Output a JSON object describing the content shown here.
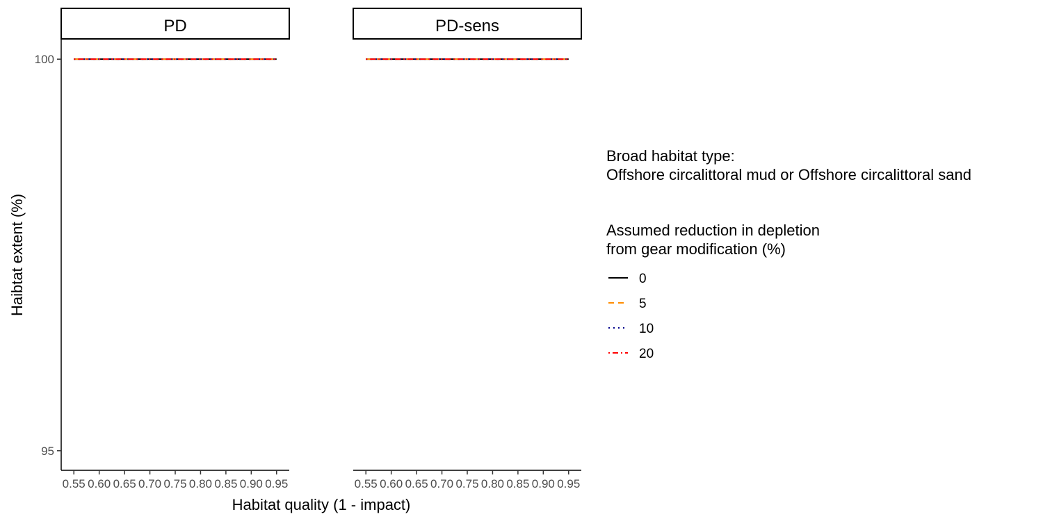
{
  "chart_data": {
    "type": "line",
    "facets": [
      {
        "strip_label": "PD"
      },
      {
        "strip_label": "PD-sens"
      }
    ],
    "x": [
      0.55,
      0.6,
      0.65,
      0.7,
      0.75,
      0.8,
      0.85,
      0.9,
      0.95
    ],
    "x_tick_labels": [
      "0.55",
      "0.60",
      "0.65",
      "0.70",
      "0.75",
      "0.80",
      "0.85",
      "0.90",
      "0.95"
    ],
    "y_ticks": [
      95,
      100
    ],
    "y_tick_labels": [
      "95",
      "100"
    ],
    "xlabel": "Habitat quality (1 - impact)",
    "ylabel": "Haibtat extent (%)",
    "xlim": [
      0.525,
      0.975
    ],
    "ylim": [
      94.75,
      100.25
    ],
    "series": [
      {
        "name": "0",
        "color": "#000000",
        "dash": "solid",
        "values": [
          100,
          100,
          100,
          100,
          100,
          100,
          100,
          100,
          100
        ]
      },
      {
        "name": "5",
        "color": "#ff8c00",
        "dash": "dashed",
        "values": [
          100,
          100,
          100,
          100,
          100,
          100,
          100,
          100,
          100
        ]
      },
      {
        "name": "10",
        "color": "#00008b",
        "dash": "dotted",
        "values": [
          100,
          100,
          100,
          100,
          100,
          100,
          100,
          100,
          100
        ]
      },
      {
        "name": "20",
        "color": "#ff0000",
        "dash": "dotdash",
        "values": [
          100,
          100,
          100,
          100,
          100,
          100,
          100,
          100,
          100
        ]
      }
    ],
    "legend": {
      "placement": "right",
      "habitat_title_line1": "Broad habitat type:",
      "habitat_title_line2": "Offshore circalittoral mud or Offshore circalittoral sand",
      "reduction_title_line1": "Assumed reduction in depletion",
      "reduction_title_line2": "from gear modification (%)"
    },
    "grid": false
  }
}
